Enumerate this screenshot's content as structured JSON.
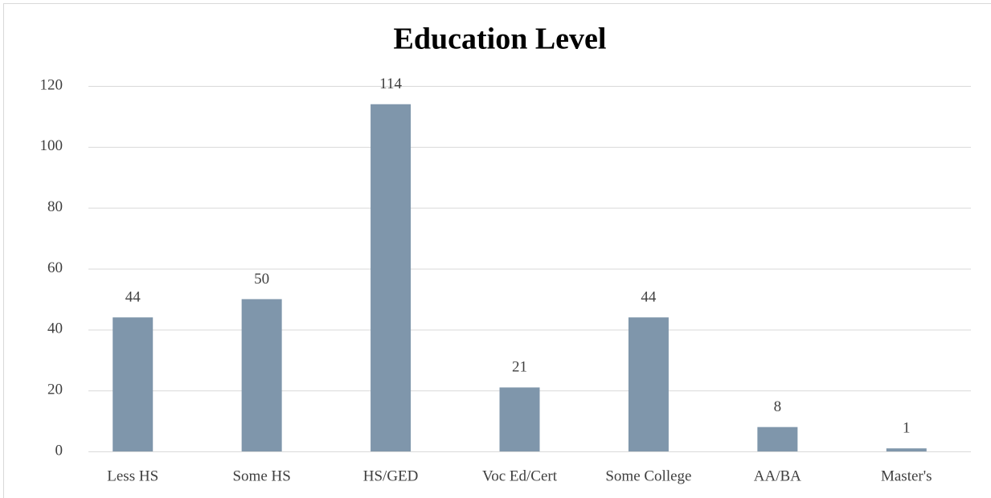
{
  "chart_data": {
    "type": "bar",
    "title": "Education Level",
    "categories": [
      "Less HS",
      "Some HS",
      "HS/GED",
      "Voc Ed/Cert",
      "Some College",
      "AA/BA",
      "Master's"
    ],
    "values": [
      44,
      50,
      114,
      21,
      44,
      8,
      1
    ],
    "color": "#7f96ab",
    "ylim": [
      0,
      120
    ],
    "yticks": [
      0,
      20,
      40,
      60,
      80,
      100,
      120
    ],
    "grid": true
  }
}
